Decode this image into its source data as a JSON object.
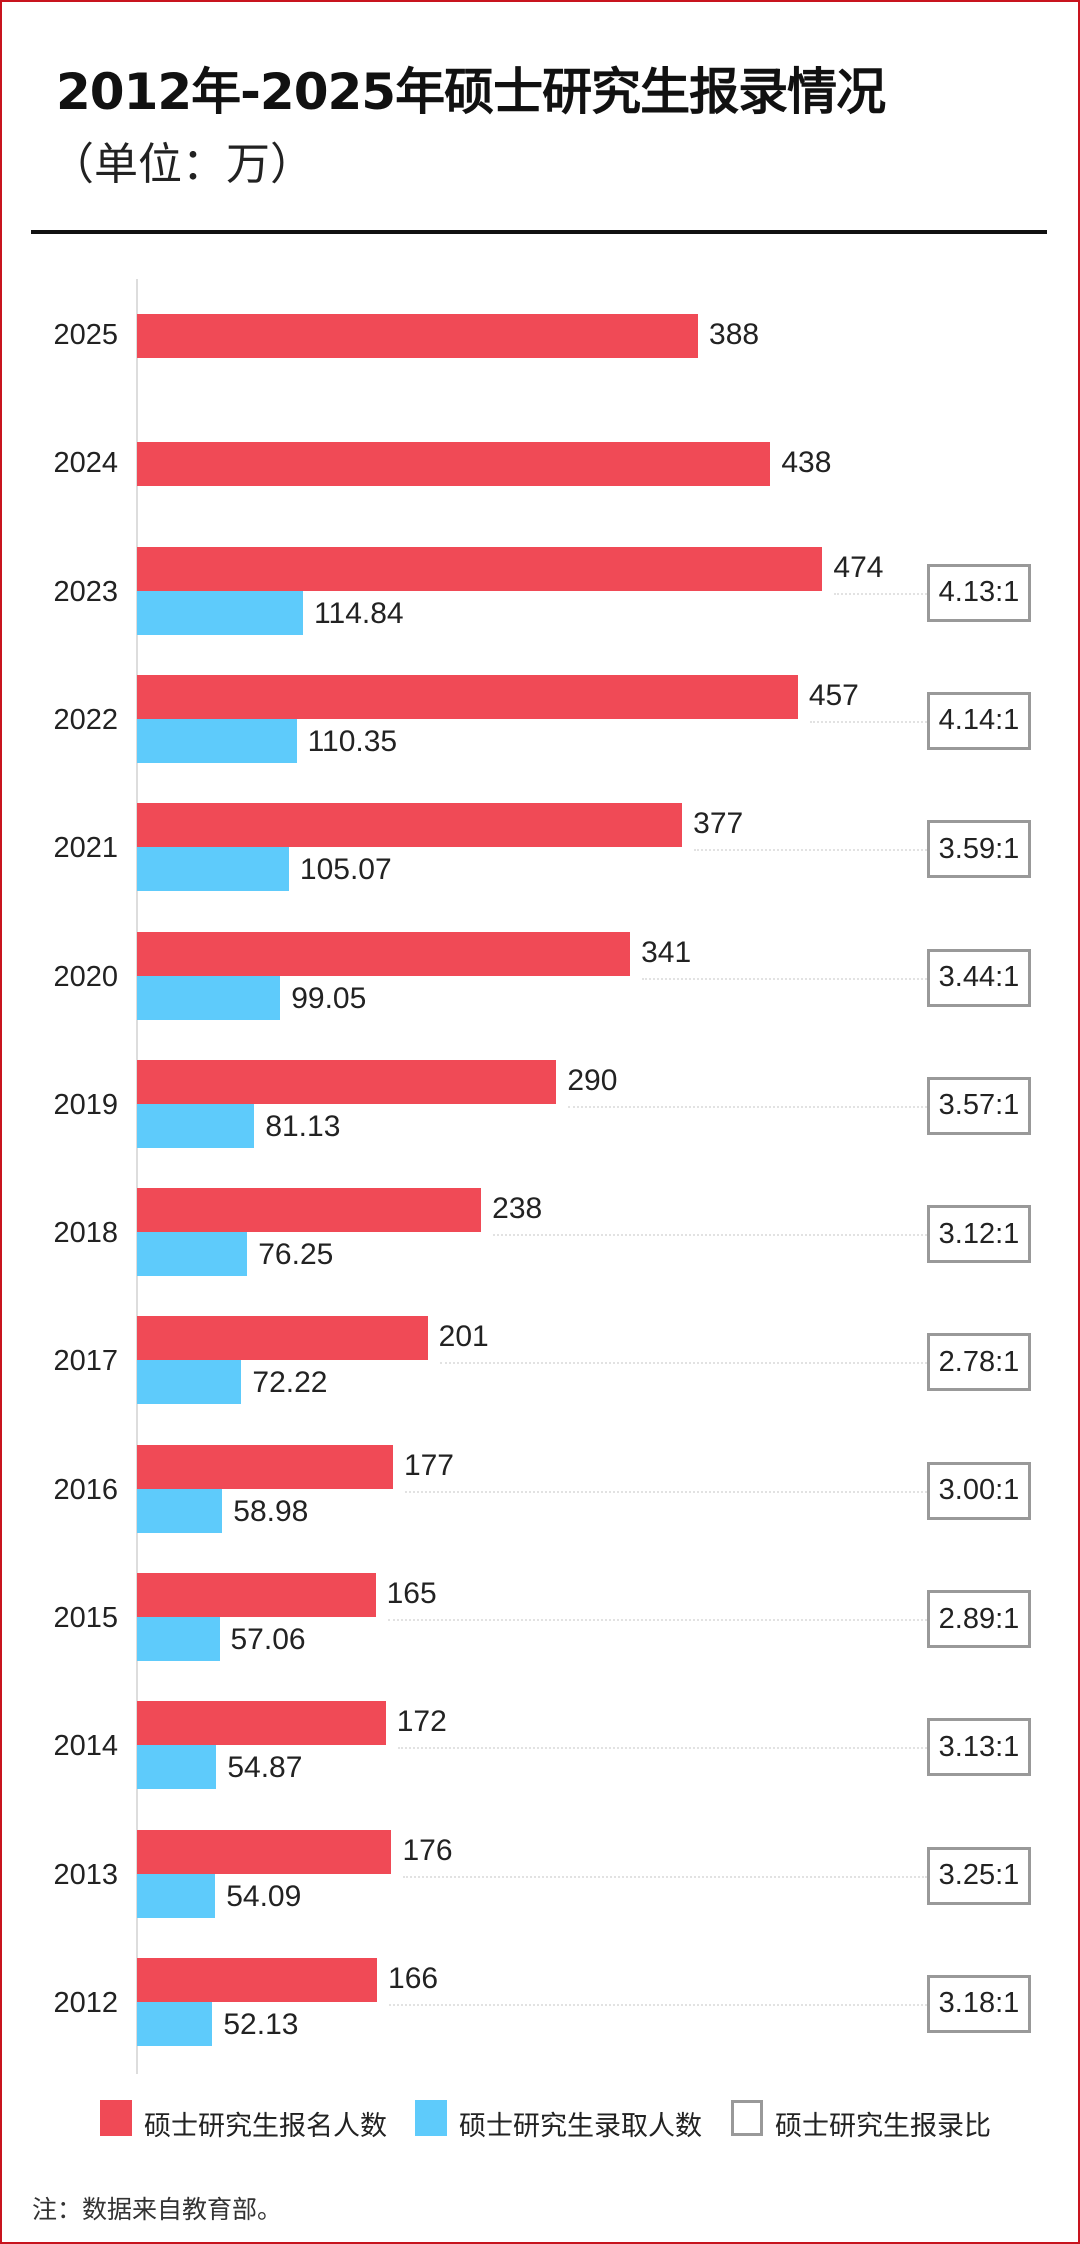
{
  "header": {
    "title": "2012年-2025年硕士研究生报录情况",
    "subtitle": "（单位：万）"
  },
  "chart_data": {
    "type": "bar",
    "orientation": "horizontal",
    "title": "2012年-2025年硕士研究生报录情况",
    "unit": "万",
    "categories": [
      "2025",
      "2024",
      "2023",
      "2022",
      "2021",
      "2020",
      "2019",
      "2018",
      "2017",
      "2016",
      "2015",
      "2014",
      "2013",
      "2012"
    ],
    "series": [
      {
        "name": "硕士研究生报名人数",
        "color": "#f04a56",
        "values": [
          388,
          438,
          474,
          457,
          377,
          341,
          290,
          238,
          201,
          177,
          165,
          172,
          176,
          166
        ]
      },
      {
        "name": "硕士研究生录取人数",
        "color": "#5ecbfb",
        "values": [
          null,
          null,
          114.84,
          110.35,
          105.07,
          99.05,
          81.13,
          76.25,
          72.22,
          58.98,
          57.06,
          54.87,
          54.09,
          52.13
        ]
      },
      {
        "name": "硕士研究生报录比",
        "color": "#999999",
        "values": [
          null,
          null,
          "4.13:1",
          "4.14:1",
          "3.59:1",
          "3.44:1",
          "3.57:1",
          "3.12:1",
          "2.78:1",
          "3.00:1",
          "2.89:1",
          "3.13:1",
          "3.25:1",
          "3.18:1"
        ]
      }
    ],
    "xlim": [
      0,
      480
    ],
    "legend_position": "bottom",
    "grid": false
  },
  "note": "注：数据来自教育部。"
}
